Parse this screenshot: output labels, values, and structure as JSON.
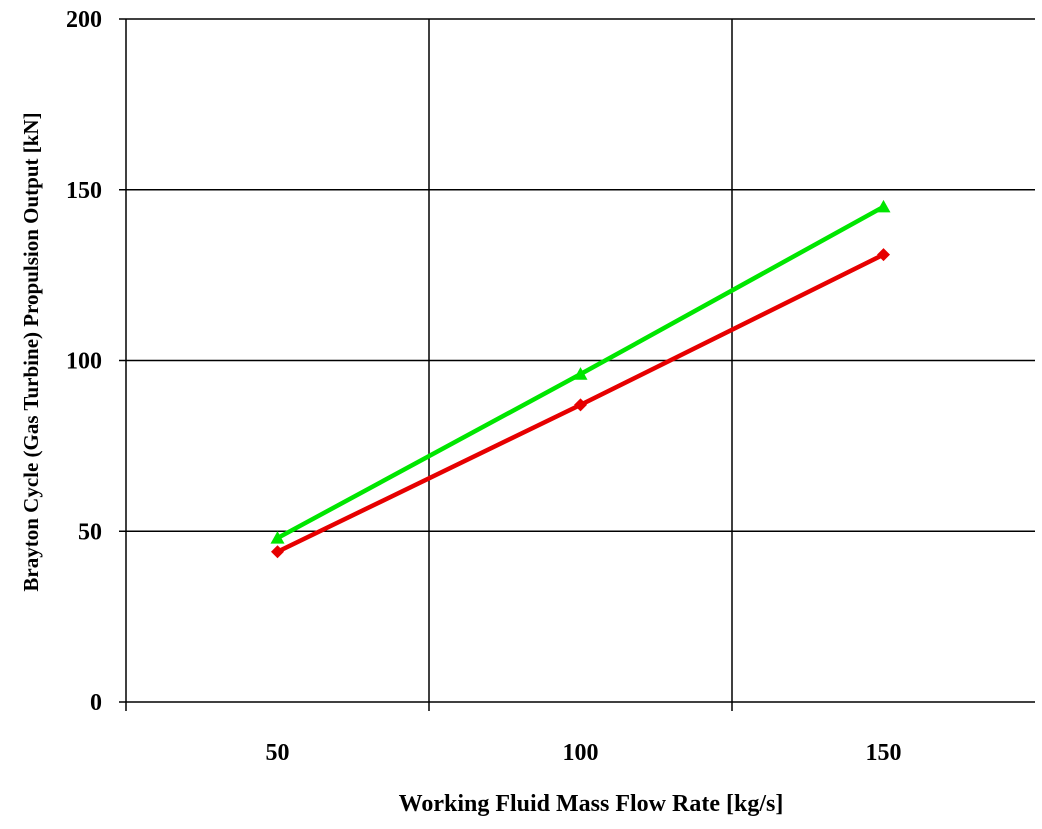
{
  "chart_data": {
    "type": "line",
    "title": "",
    "xlabel": "Working Fluid Mass Flow Rate [kg/s]",
    "ylabel": "Brayton Cycle (Gas Turbine) Propulsion Output [kN]",
    "xlim": [
      25,
      175
    ],
    "ylim": [
      0,
      200
    ],
    "x_ticks": [
      50,
      100,
      150
    ],
    "x_tick_labels": [
      "50",
      "100",
      "150"
    ],
    "y_ticks": [
      0,
      50,
      100,
      150,
      200
    ],
    "y_tick_labels": [
      "0",
      "50",
      "100",
      "150",
      "200"
    ],
    "x_gridlines": [
      75,
      125
    ],
    "y_gridlines": [
      50,
      100,
      150,
      200
    ],
    "grid": true,
    "legend": "none",
    "series": [
      {
        "color": "#00e600",
        "marker": "triangle",
        "x": [
          50,
          100,
          150
        ],
        "values": [
          48,
          96,
          145
        ]
      },
      {
        "color": "#e60000",
        "marker": "diamond",
        "x": [
          50,
          100,
          150
        ],
        "values": [
          44,
          87,
          131
        ]
      }
    ]
  }
}
